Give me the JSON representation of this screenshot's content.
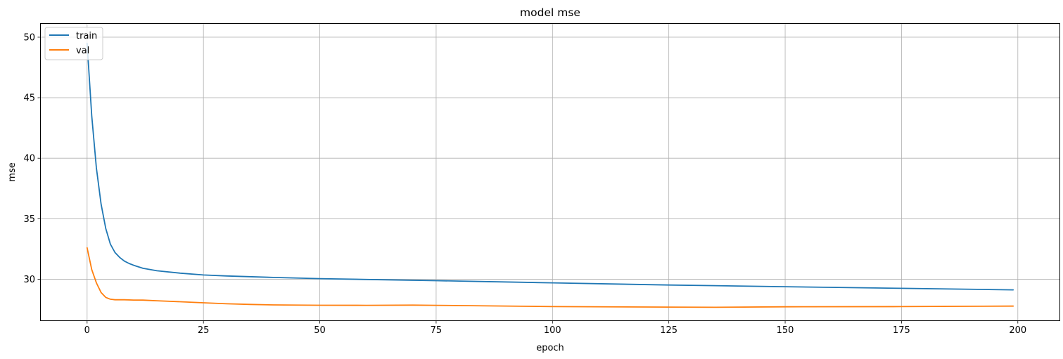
{
  "chart_data": {
    "type": "line",
    "title": "model mse",
    "xlabel": "epoch",
    "ylabel": "mse",
    "xlim": [
      -9.95,
      208.95
    ],
    "ylim": [
      26.6,
      51.1
    ],
    "xticks": [
      0,
      25,
      50,
      75,
      100,
      125,
      150,
      175,
      200
    ],
    "yticks": [
      30,
      35,
      40,
      45,
      50
    ],
    "grid": true,
    "legend_position": "upper left",
    "series": [
      {
        "name": "train",
        "color": "#1f77b4",
        "x": [
          0,
          1,
          2,
          3,
          4,
          5,
          6,
          7,
          8,
          9,
          10,
          12,
          15,
          20,
          25,
          30,
          40,
          50,
          60,
          75,
          100,
          125,
          150,
          175,
          199
        ],
        "y": [
          49.5,
          43.5,
          39.2,
          36.2,
          34.2,
          32.9,
          32.2,
          31.8,
          31.5,
          31.3,
          31.15,
          30.9,
          30.7,
          30.5,
          30.35,
          30.27,
          30.15,
          30.05,
          29.98,
          29.88,
          29.7,
          29.52,
          29.38,
          29.25,
          29.12
        ]
      },
      {
        "name": "val",
        "color": "#ff7f0e",
        "x": [
          0,
          1,
          2,
          3,
          4,
          5,
          6,
          7,
          8,
          10,
          12,
          15,
          20,
          25,
          30,
          35,
          40,
          50,
          60,
          70,
          75,
          100,
          125,
          135,
          150,
          175,
          199
        ],
        "y": [
          32.6,
          30.8,
          29.7,
          28.9,
          28.5,
          28.35,
          28.3,
          28.3,
          28.3,
          28.28,
          28.27,
          28.22,
          28.14,
          28.05,
          27.97,
          27.92,
          27.88,
          27.85,
          27.84,
          27.86,
          27.84,
          27.74,
          27.7,
          27.68,
          27.72,
          27.74,
          27.78
        ]
      }
    ]
  }
}
